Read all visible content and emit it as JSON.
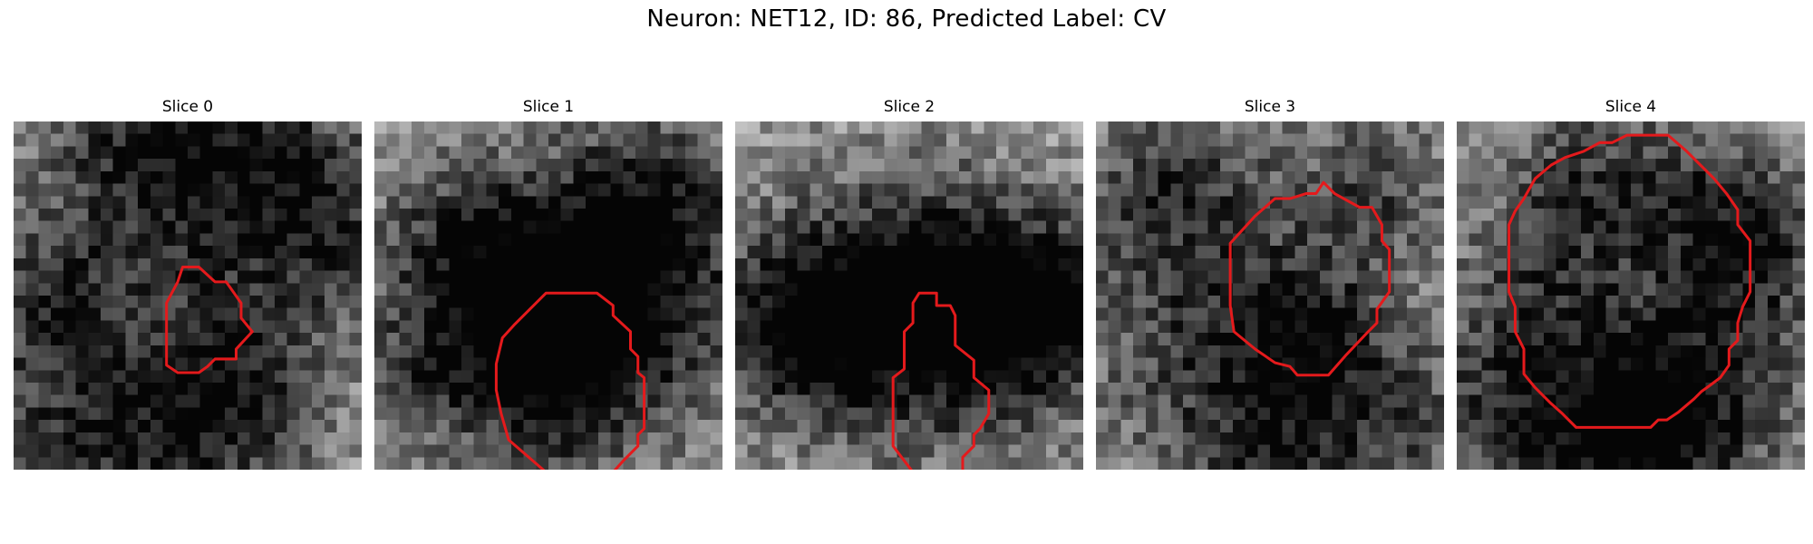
{
  "figure": {
    "title": "Neuron: NET12, ID: 86, Predicted Label: CV",
    "contour_color": "#e41a1c",
    "colormap": "gray",
    "grid_size": 28,
    "panels": [
      {
        "label": "Slice 0",
        "dark": [
          [
            12,
            1,
            7
          ],
          [
            16,
            3,
            9
          ],
          [
            5,
            24,
            6
          ],
          [
            14,
            26,
            6
          ],
          [
            18,
            20,
            5
          ],
          [
            25,
            8,
            5
          ],
          [
            2,
            14,
            5
          ]
        ],
        "contour": [
          [
            13.6,
            11.7
          ],
          [
            14.9,
            11.7
          ],
          [
            16.2,
            12.9
          ],
          [
            17.1,
            12.9
          ],
          [
            18.3,
            14.6
          ],
          [
            18.3,
            15.8
          ],
          [
            19.2,
            16.9
          ],
          [
            17.9,
            18.3
          ],
          [
            17.9,
            19.1
          ],
          [
            16.2,
            19.1
          ],
          [
            15.6,
            19.7
          ],
          [
            14.9,
            20.2
          ],
          [
            13.2,
            20.2
          ],
          [
            12.3,
            19.6
          ],
          [
            12.3,
            14.6
          ],
          [
            13.2,
            12.9
          ]
        ]
      },
      {
        "label": "Slice 1",
        "dark": [
          [
            17,
            12,
            8
          ],
          [
            12,
            14,
            5
          ],
          [
            20,
            16,
            7
          ],
          [
            6,
            9,
            5
          ],
          [
            22,
            6,
            5
          ],
          [
            4,
            20,
            5
          ],
          [
            14,
            22,
            4
          ]
        ],
        "contour": [
          [
            13.8,
            13.8
          ],
          [
            17.9,
            13.8
          ],
          [
            19.2,
            14.8
          ],
          [
            19.2,
            15.6
          ],
          [
            20.6,
            16.9
          ],
          [
            20.6,
            18.3
          ],
          [
            21.2,
            18.9
          ],
          [
            21.2,
            20.2
          ],
          [
            21.7,
            20.6
          ],
          [
            21.7,
            24.7
          ],
          [
            21.2,
            25.2
          ],
          [
            21.2,
            26.1
          ],
          [
            20.1,
            27.2
          ],
          [
            19.2,
            28.2
          ],
          [
            13.8,
            28.2
          ],
          [
            10.8,
            25.6
          ],
          [
            10.2,
            23.5
          ],
          [
            9.8,
            21.6
          ],
          [
            9.8,
            19.5
          ],
          [
            10.3,
            17.4
          ],
          [
            11.3,
            16.3
          ]
        ]
      },
      {
        "label": "Slice 2",
        "dark": [
          [
            15,
            15,
            9
          ],
          [
            8,
            15,
            6
          ],
          [
            22,
            16,
            6
          ],
          [
            4,
            16,
            5
          ],
          [
            18,
            13,
            5
          ],
          [
            27,
            14,
            4
          ]
        ],
        "contour": [
          [
            14.8,
            13.8
          ],
          [
            16.2,
            13.8
          ],
          [
            16.2,
            14.8
          ],
          [
            17.3,
            14.8
          ],
          [
            17.7,
            15.6
          ],
          [
            17.7,
            18.0
          ],
          [
            19.2,
            19.2
          ],
          [
            19.2,
            20.6
          ],
          [
            20.4,
            21.6
          ],
          [
            20.4,
            23.5
          ],
          [
            19.7,
            24.7
          ],
          [
            19.2,
            25.2
          ],
          [
            19.2,
            26.1
          ],
          [
            18.3,
            27.0
          ],
          [
            18.3,
            28.2
          ],
          [
            14.3,
            28.2
          ],
          [
            12.7,
            26.1
          ],
          [
            12.7,
            20.6
          ],
          [
            13.6,
            19.9
          ],
          [
            13.6,
            16.9
          ],
          [
            14.3,
            16.2
          ],
          [
            14.3,
            14.6
          ]
        ]
      },
      {
        "label": "Slice 3",
        "dark": [
          [
            7,
            15,
            8
          ],
          [
            13,
            26,
            6
          ],
          [
            23,
            23,
            6
          ],
          [
            6,
            4,
            5
          ],
          [
            22,
            5,
            5
          ],
          [
            16,
            16,
            4
          ]
        ],
        "contour": [
          [
            18.3,
            4.9
          ],
          [
            19.2,
            5.8
          ],
          [
            21.2,
            6.9
          ],
          [
            22.2,
            6.9
          ],
          [
            23.0,
            8.3
          ],
          [
            23.0,
            9.6
          ],
          [
            23.6,
            10.3
          ],
          [
            23.6,
            13.7
          ],
          [
            22.6,
            15.1
          ],
          [
            22.6,
            16.2
          ],
          [
            21.9,
            16.9
          ],
          [
            20.1,
            18.8
          ],
          [
            18.7,
            20.4
          ],
          [
            16.2,
            20.4
          ],
          [
            15.6,
            19.7
          ],
          [
            14.4,
            19.4
          ],
          [
            12.8,
            18.3
          ],
          [
            11.1,
            16.9
          ],
          [
            10.8,
            14.8
          ],
          [
            10.8,
            9.8
          ],
          [
            12.8,
            7.6
          ],
          [
            14.4,
            6.2
          ],
          [
            15.6,
            6.2
          ],
          [
            16.9,
            5.8
          ],
          [
            17.7,
            5.8
          ]
        ]
      },
      {
        "label": "Slice 4",
        "dark": [
          [
            6,
            14,
            6
          ],
          [
            14,
            23,
            6
          ],
          [
            21,
            20,
            6
          ],
          [
            10,
            4,
            5
          ],
          [
            20,
            6,
            5
          ],
          [
            14,
            26,
            5
          ],
          [
            3,
            24,
            5
          ],
          [
            24,
            10,
            4
          ]
        ],
        "contour": [
          [
            14.6,
            1.1
          ],
          [
            17.0,
            1.1
          ],
          [
            18.5,
            2.4
          ],
          [
            19.7,
            3.6
          ],
          [
            20.7,
            4.6
          ],
          [
            21.7,
            5.8
          ],
          [
            22.6,
            7.1
          ],
          [
            22.6,
            8.3
          ],
          [
            23.6,
            9.6
          ],
          [
            23.6,
            13.7
          ],
          [
            23.0,
            14.9
          ],
          [
            22.6,
            16.2
          ],
          [
            22.6,
            17.6
          ],
          [
            21.9,
            18.3
          ],
          [
            21.9,
            19.6
          ],
          [
            21.2,
            20.6
          ],
          [
            20.4,
            21.2
          ],
          [
            19.7,
            21.7
          ],
          [
            19.1,
            22.3
          ],
          [
            17.8,
            23.4
          ],
          [
            16.9,
            24.0
          ],
          [
            16.2,
            24.0
          ],
          [
            15.6,
            24.6
          ],
          [
            9.6,
            24.6
          ],
          [
            8.5,
            23.5
          ],
          [
            7.5,
            22.6
          ],
          [
            6.3,
            21.4
          ],
          [
            5.4,
            20.3
          ],
          [
            5.4,
            18.3
          ],
          [
            4.7,
            16.9
          ],
          [
            4.7,
            14.9
          ],
          [
            4.2,
            13.7
          ],
          [
            4.2,
            8.3
          ],
          [
            4.7,
            7.2
          ],
          [
            5.4,
            6.2
          ],
          [
            6.3,
            4.6
          ],
          [
            7.6,
            3.5
          ],
          [
            8.7,
            2.9
          ],
          [
            10.2,
            2.4
          ],
          [
            11.5,
            1.7
          ],
          [
            12.5,
            1.7
          ],
          [
            13.7,
            1.1
          ]
        ]
      }
    ]
  }
}
